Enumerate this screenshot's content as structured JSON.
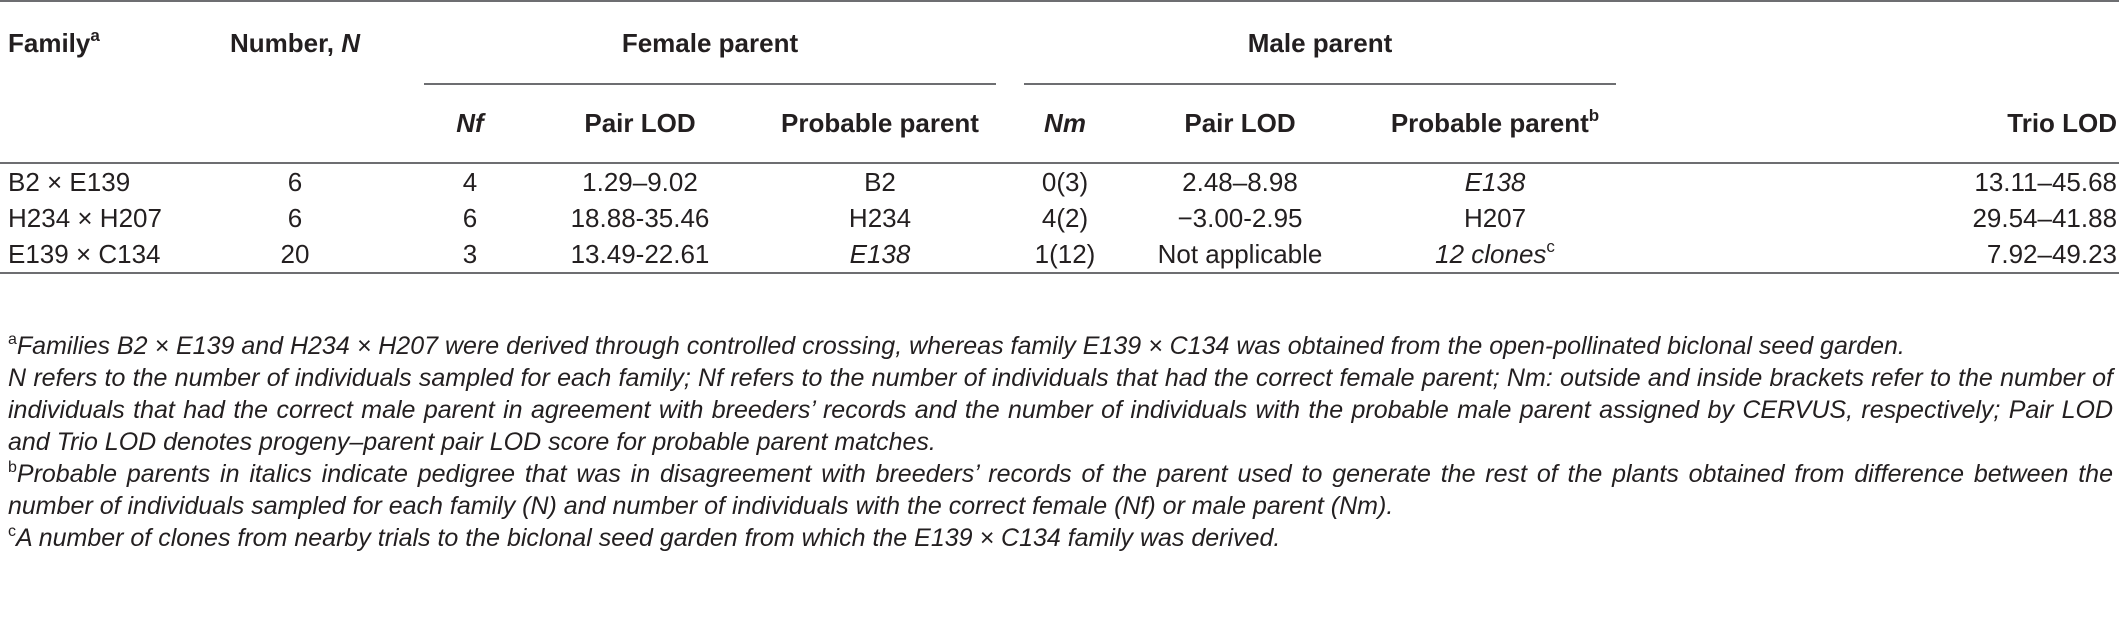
{
  "header": {
    "family": "Family",
    "family_sup": "a",
    "number_prefix": "Number, ",
    "number_symbol": "N",
    "female_parent": "Female parent",
    "male_parent": "Male parent",
    "nf": "Nf",
    "pair_lod_f": "Pair LOD",
    "probable_parent_f": "Probable parent",
    "nm": "Nm",
    "pair_lod_m": "Pair LOD",
    "probable_parent_m": "Probable parent",
    "probable_parent_m_sup": "b",
    "trio_lod": "Trio LOD"
  },
  "rows": [
    {
      "family": "B2 × E139",
      "number": "6",
      "nf": "4",
      "pair_lod_f": "1.29–9.02",
      "probable_parent_f": "B2",
      "nm": "0(3)",
      "pair_lod_m": "2.48–8.98",
      "probable_parent_m": "E138",
      "trio_lod": "13.11–45.68"
    },
    {
      "family": "H234 × H207",
      "number": "6",
      "nf": "6",
      "pair_lod_f": "18.88-35.46",
      "probable_parent_f": "H234",
      "nm": "4(2)",
      "pair_lod_m": "−3.00-2.95",
      "probable_parent_m": "H207",
      "trio_lod": "29.54–41.88"
    },
    {
      "family": "E139 × C134",
      "number": "20",
      "nf": "3",
      "pair_lod_f": "13.49-22.61",
      "probable_parent_f": "E138",
      "nm": "1(12)",
      "pair_lod_m": "Not applicable",
      "probable_parent_m": "12 clones",
      "probable_parent_m_sup": "c",
      "trio_lod": "7.92–49.23"
    }
  ],
  "footnotes": {
    "a_mark": "a",
    "a_text": "Families B2 × E139 and H234 × H207 were derived through controlled crossing, whereas family E139 × C134 was obtained from the open-pollinated biclonal seed garden.",
    "n_text": "N refers to the number of individuals sampled for each family; Nf refers to the number of individuals that had the correct female parent; Nm: outside and inside brackets refer to the number of individuals that had the correct male parent in agreement with breeders’ records and the number of individuals with the probable male parent assigned by CERVUS, respectively; Pair LOD and Trio LOD denotes progeny–parent pair LOD score for probable parent matches.",
    "b_mark": "b",
    "b_text": "Probable parents in italics indicate pedigree that was in disagreement with breeders’ records of the parent used to generate the rest of the plants obtained from difference between the number of individuals sampled for each family (N) and number of individuals with the correct female (Nf) or male parent (Nm).",
    "c_mark": "c",
    "c_text": "A number of clones from nearby trials to the biclonal seed garden from which the E139 × C134 family was derived."
  }
}
